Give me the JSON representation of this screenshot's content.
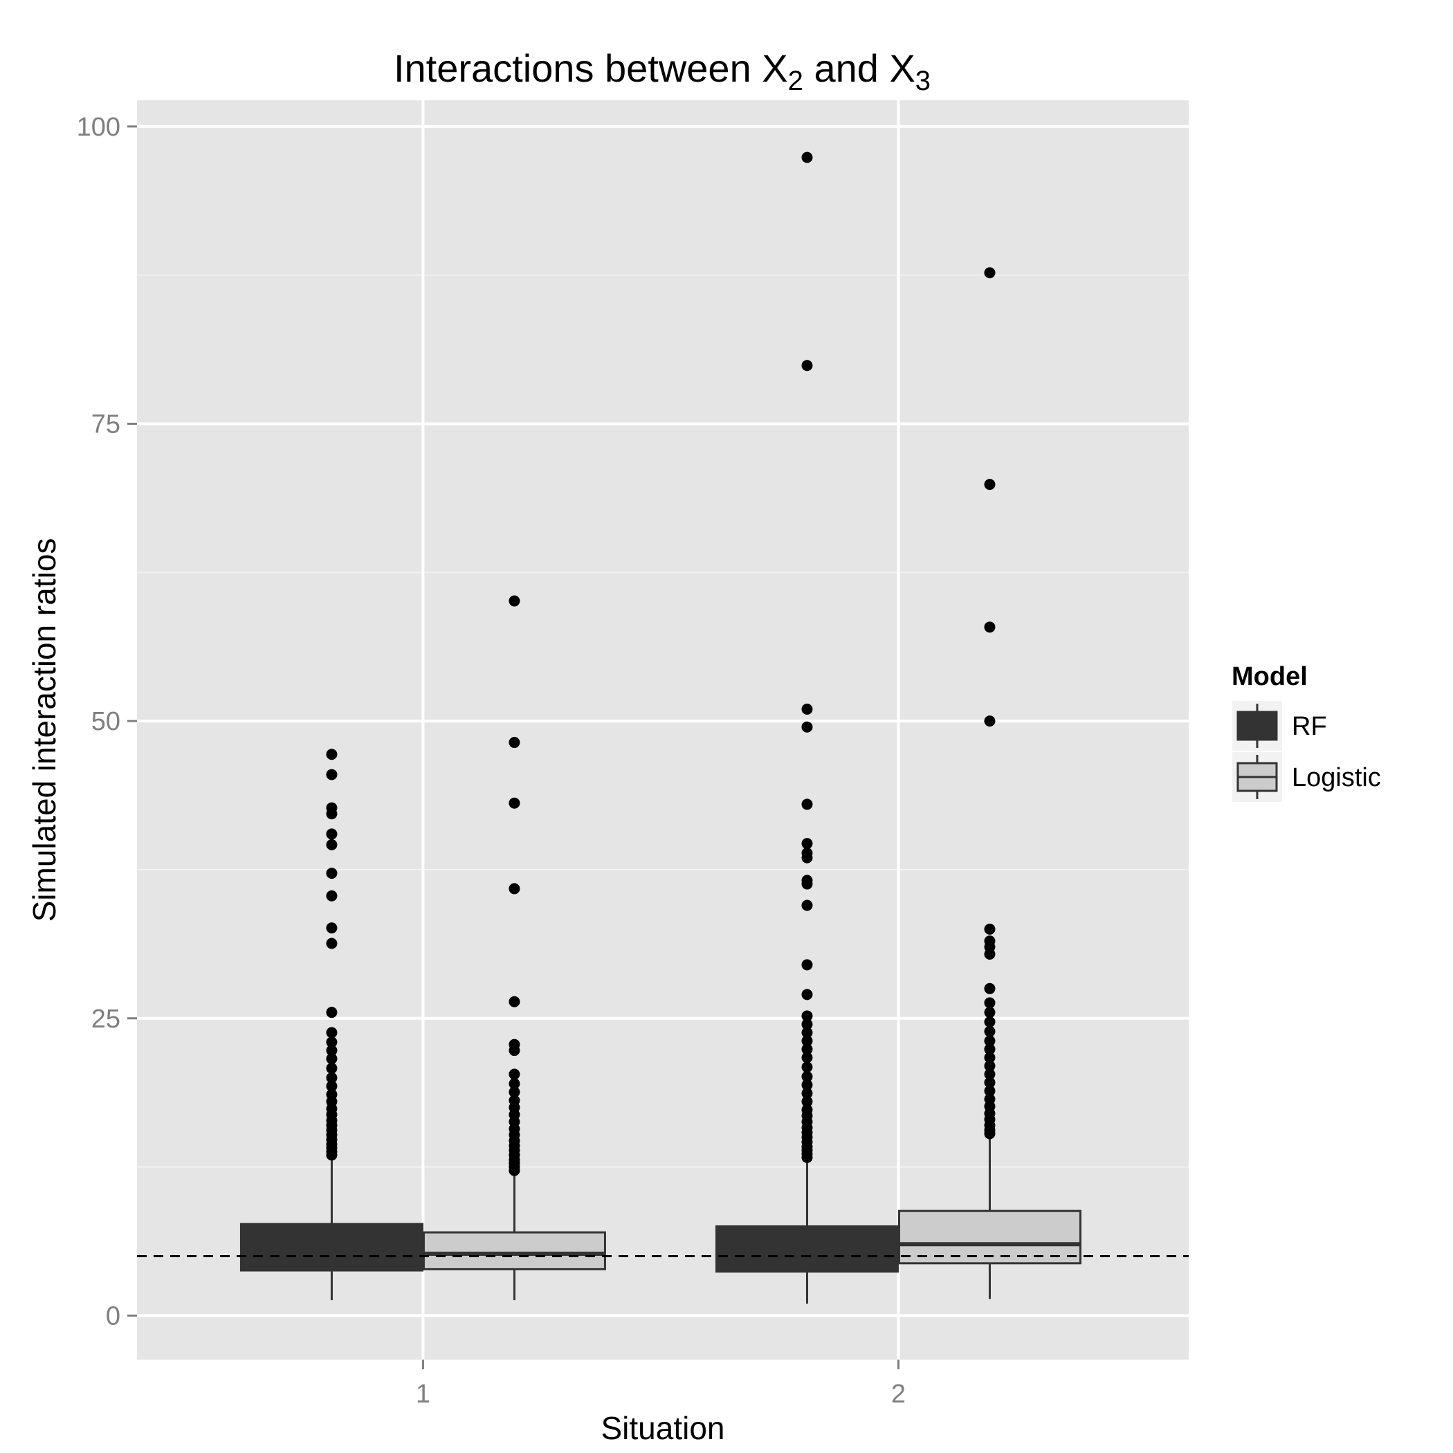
{
  "chart_data": {
    "type": "boxplot",
    "title": {
      "main": "Interactions between X",
      "sub_a": "2",
      "mid": " and X",
      "sub_b": "3"
    },
    "xlabel": "Situation",
    "ylabel": "Simulated interaction ratios",
    "categories": [
      "1",
      "2"
    ],
    "y_ticks": [
      "0",
      "25",
      "50",
      "75",
      "100"
    ],
    "ylim": [
      -3.7,
      102.2
    ],
    "grid": true,
    "reference_line": {
      "y": 5,
      "style": "dashed"
    },
    "legend": {
      "title": "Model",
      "placement": "right",
      "entries": [
        "RF",
        "Logistic"
      ]
    },
    "series": [
      {
        "name": "RF",
        "fill": "#333333",
        "boxes": [
          {
            "category": "1",
            "whisker_low": 1.3,
            "q1": 3.8,
            "median": 5.0,
            "q3": 7.7,
            "whisker_high": 13.3,
            "outliers": [
              13.5,
              13.8,
              14.1,
              14.4,
              14.8,
              15.2,
              15.6,
              16.0,
              16.4,
              16.9,
              17.4,
              18.0,
              18.6,
              19.3,
              20.0,
              20.8,
              21.6,
              22.3,
              23.0,
              23.8,
              25.5,
              31.3,
              32.6,
              35.3,
              37.2,
              39.6,
              40.5,
              42.2,
              42.7,
              45.5,
              47.2
            ]
          },
          {
            "category": "2",
            "whisker_low": 1.0,
            "q1": 3.7,
            "median": 5.2,
            "q3": 7.5,
            "whisker_high": 13.0,
            "outliers": [
              13.3,
              13.6,
              13.9,
              14.2,
              14.6,
              15.0,
              15.4,
              15.8,
              16.3,
              16.8,
              17.3,
              18.0,
              18.7,
              19.4,
              20.1,
              20.9,
              21.7,
              22.4,
              23.1,
              23.8,
              24.5,
              25.2,
              27.0,
              29.5,
              34.5,
              36.3,
              36.6,
              38.5,
              38.9,
              39.7,
              43.0,
              49.5,
              51.0,
              79.9,
              97.4
            ]
          }
        ]
      },
      {
        "name": "Logistic",
        "fill": "#cccccc",
        "boxes": [
          {
            "category": "1",
            "whisker_low": 1.3,
            "q1": 3.9,
            "median": 5.2,
            "q3": 7.0,
            "whisker_high": 12.0,
            "outliers": [
              12.2,
              12.5,
              12.8,
              13.1,
              13.5,
              13.9,
              14.3,
              14.7,
              15.2,
              15.7,
              16.3,
              16.9,
              17.5,
              18.1,
              18.8,
              19.5,
              20.3,
              22.3,
              22.8,
              26.4,
              35.9,
              43.1,
              48.2,
              60.1
            ]
          },
          {
            "category": "2",
            "whisker_low": 1.4,
            "q1": 4.4,
            "median": 6.0,
            "q3": 8.8,
            "whisker_high": 15.1,
            "outliers": [
              15.3,
              15.6,
              16.0,
              16.5,
              17.0,
              17.6,
              18.2,
              18.9,
              19.6,
              20.3,
              21.0,
              21.7,
              22.4,
              23.1,
              23.9,
              24.7,
              25.5,
              26.3,
              27.5,
              30.4,
              31.0,
              31.5,
              32.5,
              50.0,
              57.9,
              69.9,
              87.7
            ]
          }
        ]
      }
    ],
    "colors": {
      "panel": "#e5e5e5",
      "grid_major": "#ffffff",
      "grid_minor": "#f2f2f2",
      "outline": "#333333",
      "point": "#000000",
      "tick_text": "#7f7f7f"
    }
  }
}
